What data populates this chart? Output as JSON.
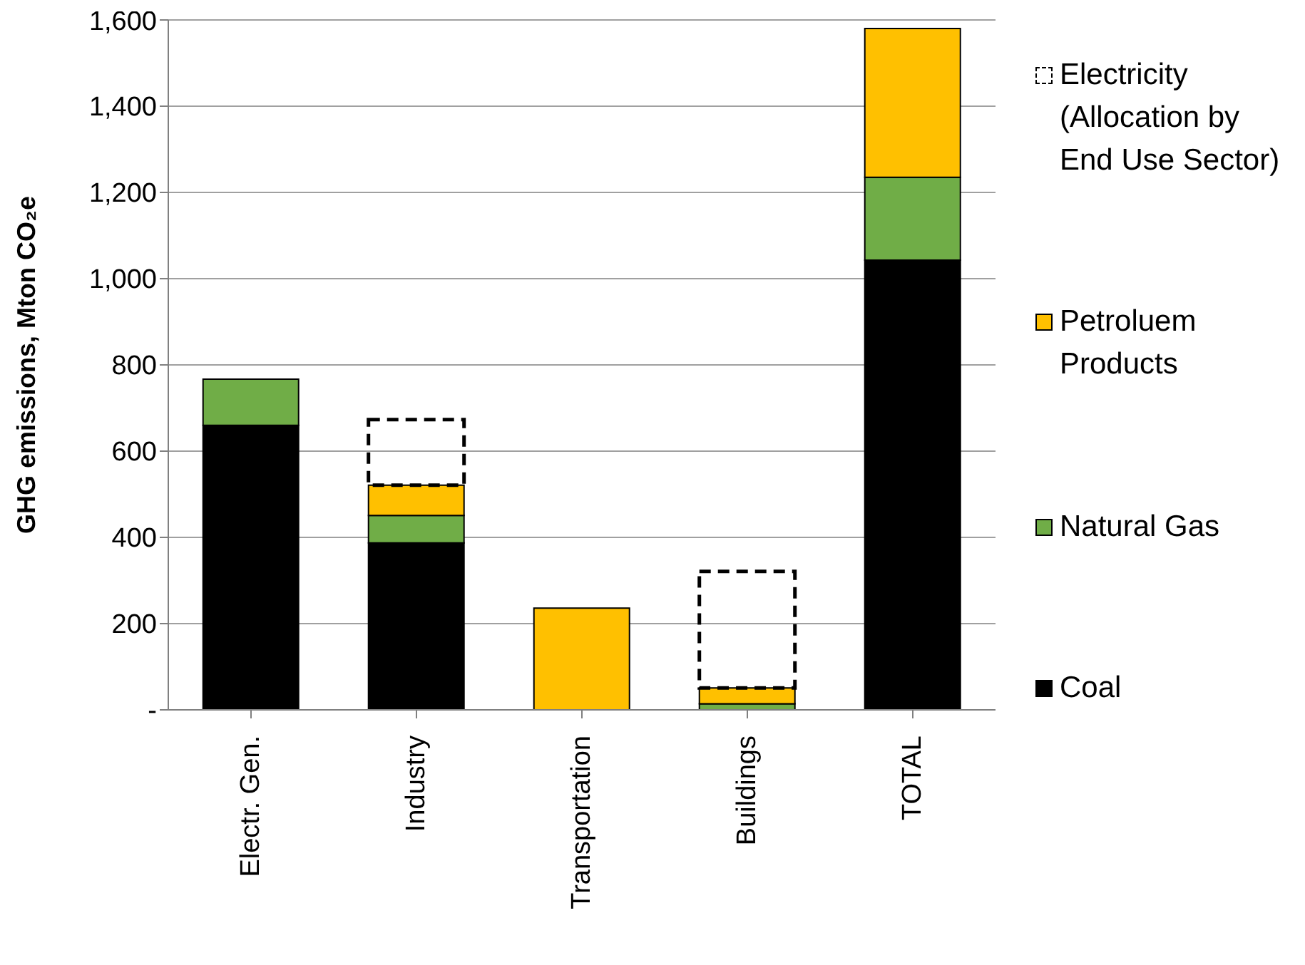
{
  "chart_data": {
    "type": "bar",
    "stacked": true,
    "ylabel": "GHG emissions, Mton CO₂e",
    "categories": [
      "Electr. Gen.",
      "Industry",
      "Transportation",
      "Buildings",
      "TOTAL"
    ],
    "series": [
      {
        "name": "Coal",
        "color": "#000000",
        "values": [
          660,
          387,
          null,
          null,
          1043
        ]
      },
      {
        "name": "Natural Gas",
        "color": "#70ad47",
        "values": [
          107,
          64,
          null,
          14,
          192
        ]
      },
      {
        "name": "Petroluem Products",
        "color": "#ffc000",
        "values": [
          null,
          70,
          236,
          37,
          345
        ]
      },
      {
        "name": "Electricity (Allocation by End Use Sector)",
        "color": "#000000",
        "line_style": "dashed",
        "values": [
          null,
          152,
          null,
          270,
          null
        ]
      }
    ],
    "ylim": [
      0,
      1600
    ],
    "yticks": [
      {
        "value": 0,
        "label": "-"
      },
      200,
      400,
      600,
      800,
      {
        "value": 1000,
        "label": "1,000"
      },
      {
        "value": 1200,
        "label": "1,200"
      },
      {
        "value": 1400,
        "label": "1,400"
      },
      {
        "value": 1600,
        "label": "1,600"
      }
    ],
    "grid": "y",
    "legend": "right"
  }
}
